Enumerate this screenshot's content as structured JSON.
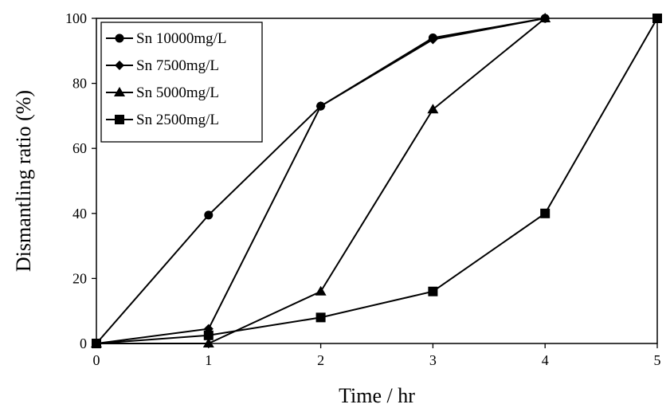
{
  "chart_data": {
    "type": "line",
    "title": "",
    "xlabel": "Time / hr",
    "ylabel": "Dismantling ratio (%)",
    "xlim": [
      0,
      5
    ],
    "ylim": [
      0,
      100
    ],
    "x_ticks": [
      "0",
      "1",
      "2",
      "3",
      "4",
      "5"
    ],
    "y_ticks": [
      "0",
      "20",
      "40",
      "60",
      "80",
      "100"
    ],
    "grid": false,
    "legend_position": "top-left",
    "series": [
      {
        "name": "Sn 10000mg/L",
        "marker": "circle",
        "points": [
          [
            0,
            0
          ],
          [
            1,
            39.5
          ],
          [
            2,
            73
          ],
          [
            3,
            94
          ],
          [
            4,
            100
          ]
        ]
      },
      {
        "name": "Sn 7500mg/L",
        "marker": "diamond",
        "points": [
          [
            0,
            0
          ],
          [
            1,
            4.5
          ],
          [
            2,
            73
          ],
          [
            3,
            93.5
          ],
          [
            4,
            100
          ]
        ]
      },
      {
        "name": "Sn 5000mg/L",
        "marker": "triangle",
        "points": [
          [
            0,
            0
          ],
          [
            1,
            0
          ],
          [
            2,
            16
          ],
          [
            3,
            72
          ],
          [
            4,
            100
          ]
        ]
      },
      {
        "name": "Sn 2500mg/L",
        "marker": "square",
        "points": [
          [
            0,
            0
          ],
          [
            1,
            2.5
          ],
          [
            2,
            8
          ],
          [
            3,
            16
          ],
          [
            4,
            40
          ],
          [
            5,
            100
          ]
        ]
      }
    ]
  }
}
